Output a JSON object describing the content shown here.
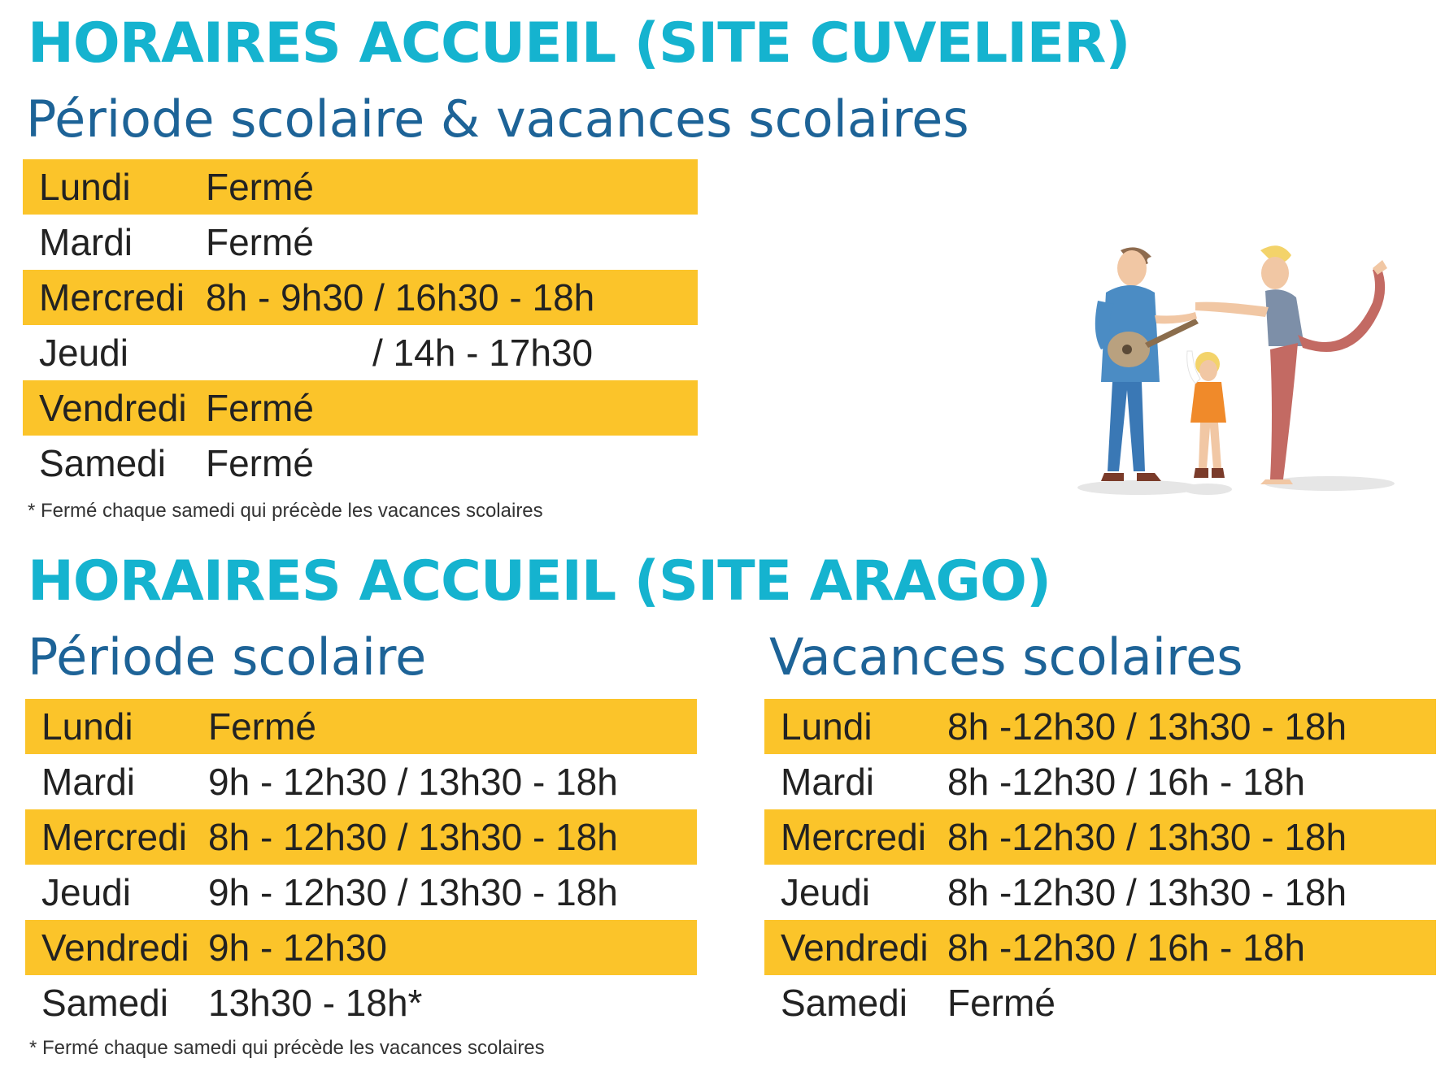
{
  "cuvelier": {
    "title": "HORAIRES ACCUEIL (SITE CUVELIER)",
    "subtitle": "Période scolaire & vacances scolaires",
    "rows": [
      {
        "day": "Lundi",
        "hours": "Fermé"
      },
      {
        "day": "Mardi",
        "hours": "Fermé"
      },
      {
        "day": "Mercredi",
        "hours": "8h - 9h30 / 16h30 - 18h"
      },
      {
        "day": "Jeudi",
        "hours": "/ 14h - 17h30"
      },
      {
        "day": "Vendredi",
        "hours": "Fermé"
      },
      {
        "day": "Samedi",
        "hours": "Fermé"
      }
    ],
    "note": "* Fermé chaque samedi qui précède les vacances scolaires"
  },
  "arago": {
    "title": "HORAIRES ACCUEIL (SITE ARAGO)",
    "school": {
      "subtitle": "Période scolaire",
      "rows": [
        {
          "day": "Lundi",
          "hours": "Fermé"
        },
        {
          "day": "Mardi",
          "hours": "9h - 12h30 / 13h30 - 18h"
        },
        {
          "day": "Mercredi",
          "hours": "8h - 12h30 / 13h30 - 18h"
        },
        {
          "day": "Jeudi",
          "hours": "9h - 12h30 / 13h30 - 18h"
        },
        {
          "day": "Vendredi",
          "hours": "9h - 12h30"
        },
        {
          "day": "Samedi",
          "hours": "13h30 - 18h*"
        }
      ],
      "note": "* Fermé chaque samedi qui précède les vacances scolaires"
    },
    "holidays": {
      "subtitle": "Vacances scolaires",
      "rows": [
        {
          "day": "Lundi",
          "hours": "8h -12h30 / 13h30 - 18h"
        },
        {
          "day": "Mardi",
          "hours": "8h -12h30 / 16h - 18h"
        },
        {
          "day": "Mercredi",
          "hours": "8h -12h30 / 13h30 - 18h"
        },
        {
          "day": "Jeudi",
          "hours": "8h -12h30 / 13h30 - 18h"
        },
        {
          "day": "Vendredi",
          "hours": "8h -12h30 / 16h - 18h"
        },
        {
          "day": "Samedi",
          "hours": "Fermé"
        }
      ]
    }
  },
  "colors": {
    "title": "#15b3cf",
    "subtitle": "#1d6397",
    "highlight": "#fbc42a"
  },
  "illustration": "family-music-yoga-illustration"
}
